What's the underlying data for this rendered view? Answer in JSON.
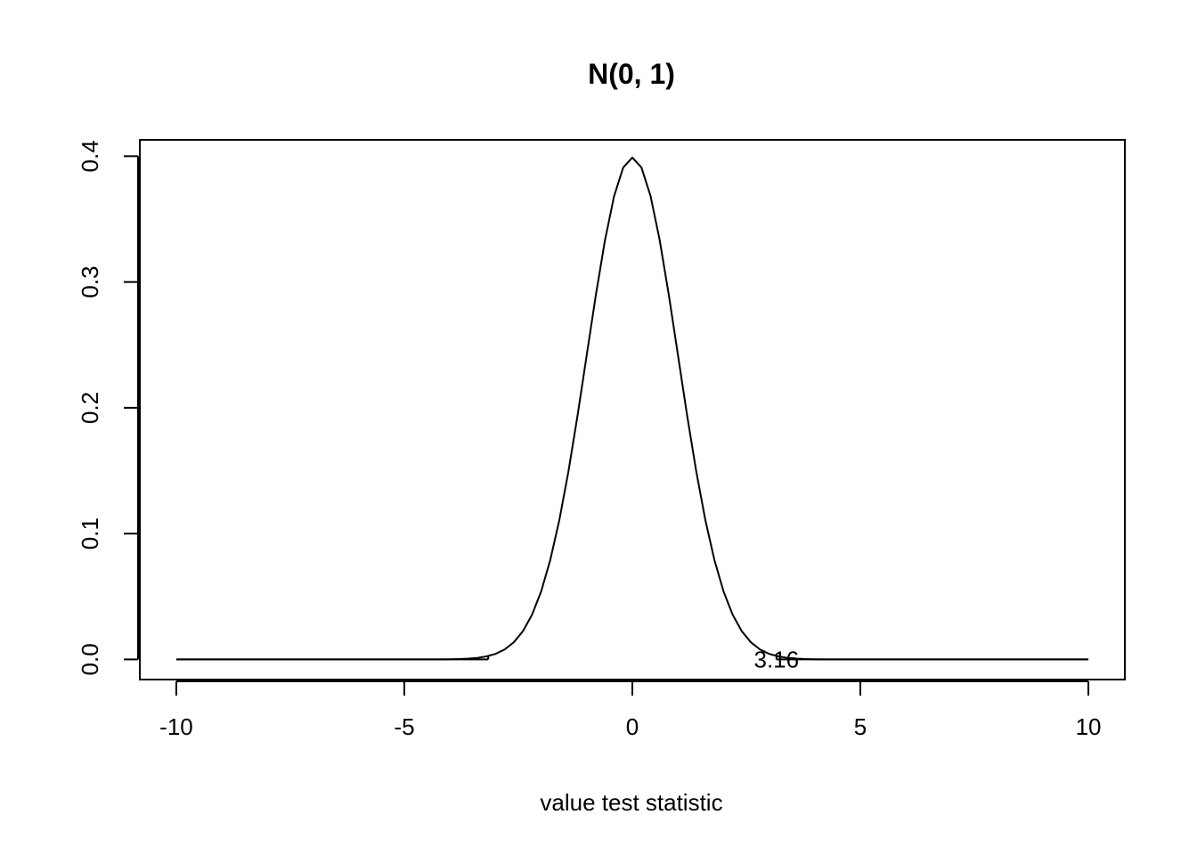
{
  "chart_data": {
    "type": "line",
    "title": "N(0, 1)",
    "xlabel": "value test statistic",
    "ylabel": "",
    "xlim": [
      -10.8,
      10.8
    ],
    "ylim": [
      -0.016,
      0.413
    ],
    "x_ticks": [
      -10,
      -5,
      0,
      5,
      10
    ],
    "x_tick_labels": [
      "-10",
      "-5",
      "0",
      "5",
      "10"
    ],
    "y_ticks": [
      0.0,
      0.1,
      0.2,
      0.3,
      0.4
    ],
    "y_tick_labels": [
      "0.0",
      "0.1",
      "0.2",
      "0.3",
      "0.4"
    ],
    "grid": false,
    "series": [
      {
        "x": [
          -10.0,
          -9.8,
          -9.6,
          -9.4,
          -9.2,
          -9.0,
          -8.8,
          -8.6,
          -8.4,
          -8.2,
          -8.0,
          -7.8,
          -7.6,
          -7.4,
          -7.2,
          -7.0,
          -6.8,
          -6.6,
          -6.4,
          -6.2,
          -6.0,
          -5.8,
          -5.6,
          -5.4,
          -5.2,
          -5.0,
          -4.8,
          -4.6,
          -4.4,
          -4.2,
          -4.0,
          -3.8,
          -3.6,
          -3.4,
          -3.2,
          -3.0,
          -2.8,
          -2.6,
          -2.4,
          -2.2,
          -2.0,
          -1.8,
          -1.6,
          -1.4,
          -1.2,
          -1.0,
          -0.8,
          -0.6,
          -0.4,
          -0.2,
          0.0,
          0.2,
          0.4,
          0.6,
          0.8,
          1.0,
          1.2,
          1.4,
          1.6,
          1.8,
          2.0,
          2.2,
          2.4,
          2.6,
          2.8,
          3.0,
          3.2,
          3.4,
          3.6,
          3.8,
          4.0,
          4.2,
          4.4,
          4.6,
          4.8,
          5.0,
          5.2,
          5.4,
          5.6,
          5.8,
          6.0,
          6.2,
          6.4,
          6.6,
          6.8,
          7.0,
          7.2,
          7.4,
          7.6,
          7.8,
          8.0,
          8.2,
          8.4,
          8.6,
          8.8,
          9.0,
          9.2,
          9.4,
          9.6,
          9.8,
          10.0
        ],
        "values": [
          0.0,
          0.0,
          0.0,
          0.0,
          0.0,
          0.0,
          0.0,
          0.0,
          0.0,
          0.0,
          0.0,
          0.0,
          0.0,
          0.0,
          0.0,
          0.0,
          0.0,
          0.0,
          0.0,
          0.0,
          0.0,
          0.0,
          0.0,
          0.0,
          0.0,
          0.0,
          0.0,
          0.0,
          0.0,
          0.0,
          0.0001,
          0.0003,
          0.0006,
          0.0012,
          0.0024,
          0.0044,
          0.0079,
          0.0136,
          0.0224,
          0.0355,
          0.054,
          0.079,
          0.1109,
          0.1497,
          0.1942,
          0.242,
          0.2897,
          0.3332,
          0.3683,
          0.391,
          0.3989,
          0.391,
          0.3683,
          0.3332,
          0.2897,
          0.242,
          0.1942,
          0.1497,
          0.1109,
          0.079,
          0.054,
          0.0355,
          0.0224,
          0.0136,
          0.0079,
          0.0044,
          0.0024,
          0.0012,
          0.0006,
          0.0003,
          0.0001,
          0.0,
          0.0,
          0.0,
          0.0,
          0.0,
          0.0,
          0.0,
          0.0,
          0.0,
          0.0,
          0.0,
          0.0,
          0.0,
          0.0,
          0.0,
          0.0,
          0.0,
          0.0,
          0.0,
          0.0,
          0.0,
          0.0,
          0.0,
          0.0,
          0.0,
          0.0,
          0.0,
          0.0,
          0.0,
          0.0
        ],
        "color": "#000000"
      }
    ],
    "segments": [
      {
        "x": [
          -10.0,
          -3.16
        ],
        "y": [
          0.0,
          0.0
        ]
      },
      {
        "x": [
          -3.16,
          -3.16
        ],
        "y": [
          0.0,
          0.0027
        ]
      },
      {
        "x": [
          3.16,
          10.0
        ],
        "y": [
          0.0,
          0.0
        ]
      },
      {
        "x": [
          3.16,
          3.16
        ],
        "y": [
          0.0,
          0.0027
        ]
      }
    ],
    "annotations": [
      {
        "text": "3.16",
        "x": 3.16,
        "y": 0.0
      }
    ]
  }
}
